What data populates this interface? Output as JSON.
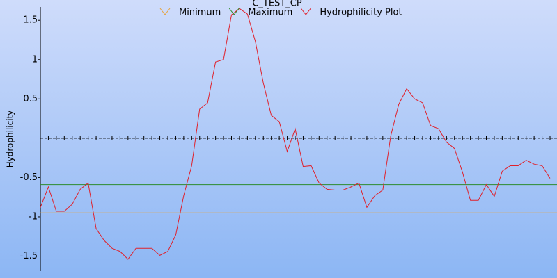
{
  "chart_data": {
    "type": "line",
    "title": "C_TEST_CP",
    "ylabel": "Hydrophilicity",
    "ylim": [
      -1.69,
      1.67
    ],
    "yticks": [
      1.5,
      1,
      0.5,
      -0.5,
      -1,
      -1.5
    ],
    "zero_line": true,
    "reference_lines": [
      {
        "name": "Minimum",
        "color": "#e8a33a",
        "value": -0.95
      },
      {
        "name": "Maximum",
        "color": "#2e8b2e",
        "value": -0.59
      }
    ],
    "series": [
      {
        "name": "Hydrophilicity Plot",
        "color": "#e0202a",
        "values": [
          -0.88,
          -0.62,
          -0.93,
          -0.93,
          -0.84,
          -0.65,
          -0.57,
          -1.15,
          -1.3,
          -1.4,
          -1.44,
          -1.54,
          -1.4,
          -1.4,
          -1.4,
          -1.49,
          -1.44,
          -1.23,
          -0.73,
          -0.35,
          0.37,
          0.45,
          0.97,
          1.0,
          1.57,
          1.65,
          1.58,
          1.23,
          0.7,
          0.29,
          0.21,
          -0.17,
          0.12,
          -0.36,
          -0.35,
          -0.57,
          -0.65,
          -0.66,
          -0.66,
          -0.62,
          -0.57,
          -0.88,
          -0.73,
          -0.66,
          0.03,
          0.43,
          0.63,
          0.5,
          0.45,
          0.16,
          0.12,
          -0.05,
          -0.13,
          -0.43,
          -0.79,
          -0.79,
          -0.59,
          -0.74,
          -0.42,
          -0.35,
          -0.35,
          -0.28,
          -0.33,
          -0.35,
          -0.51
        ]
      }
    ]
  }
}
